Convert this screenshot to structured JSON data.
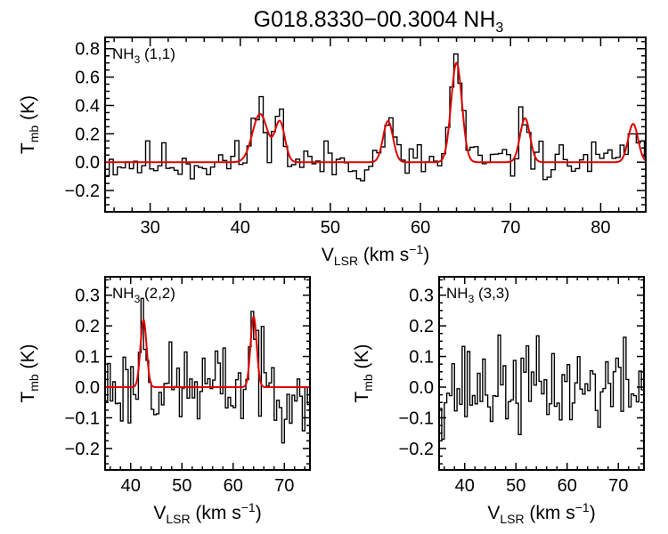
{
  "chart_data": [
    {
      "type": "line",
      "title": "G018.8330−00.3004 NH",
      "title_sub": "3",
      "panel_label": "NH",
      "panel_label_sub": "3",
      "panel_label_suffix": " (1,1)",
      "xlabel": "V",
      "xlabel_sub": "LSR",
      "xlabel_suffix": " (km s",
      "xlabel_sup": "−1",
      "xlabel_close": ")",
      "ylabel": "T",
      "ylabel_sub": "mb",
      "ylabel_suffix": " (K)",
      "xlim": [
        25,
        85
      ],
      "ylim": [
        -0.35,
        0.88
      ],
      "xticks": [
        30,
        40,
        50,
        60,
        70,
        80
      ],
      "yticks": [
        -0.2,
        0.0,
        0.2,
        0.4,
        0.6,
        0.8
      ],
      "ytick_labels": [
        "−0.2",
        "0.0",
        "0.2",
        "0.4",
        "0.6",
        "0.8"
      ],
      "xtick_labels": [
        "30",
        "40",
        "50",
        "60",
        "70",
        "80"
      ],
      "obs_seed": 11,
      "obs_noise": 0.075,
      "obs_step": 0.45,
      "series": [
        {
          "name": "observed spectrum",
          "style": "histogram",
          "color": "#000000"
        },
        {
          "name": "hyperfine fit",
          "style": "line",
          "color": "#e00000",
          "components": [
            {
              "center": 42.2,
              "amplitude": 0.34,
              "sigma": 0.85
            },
            {
              "center": 44.4,
              "amplitude": 0.28,
              "sigma": 0.55
            },
            {
              "center": 56.4,
              "amplitude": 0.29,
              "sigma": 0.55
            },
            {
              "center": 64.0,
              "amplitude": 0.7,
              "sigma": 0.6
            },
            {
              "center": 71.6,
              "amplitude": 0.31,
              "sigma": 0.55
            },
            {
              "center": 83.6,
              "amplitude": 0.27,
              "sigma": 0.55
            }
          ]
        }
      ]
    },
    {
      "type": "line",
      "panel_label": "NH",
      "panel_label_sub": "3",
      "panel_label_suffix": " (2,2)",
      "xlabel": "V",
      "xlabel_sub": "LSR",
      "xlabel_suffix": " (km s",
      "xlabel_sup": "−1",
      "xlabel_close": ")",
      "ylabel": "T",
      "ylabel_sub": "mb",
      "ylabel_suffix": " (K)",
      "xlim": [
        35,
        75
      ],
      "ylim": [
        -0.27,
        0.36
      ],
      "xticks": [
        40,
        50,
        60,
        70
      ],
      "yticks": [
        -0.2,
        -0.1,
        0.0,
        0.1,
        0.2,
        0.3
      ],
      "ytick_labels": [
        "−0.2",
        "−0.1",
        "0.0",
        "0.1",
        "0.2",
        "0.3"
      ],
      "xtick_labels": [
        "40",
        "50",
        "60",
        "70"
      ],
      "obs_seed": 23,
      "obs_noise": 0.07,
      "obs_step": 0.5,
      "series": [
        {
          "name": "observed spectrum",
          "style": "histogram",
          "color": "#000000"
        },
        {
          "name": "hyperfine fit",
          "style": "line",
          "color": "#e00000",
          "components": [
            {
              "center": 42.5,
              "amplitude": 0.22,
              "sigma": 0.6
            },
            {
              "center": 64.0,
              "amplitude": 0.23,
              "sigma": 0.6
            }
          ]
        }
      ]
    },
    {
      "type": "line",
      "panel_label": "NH",
      "panel_label_sub": "3",
      "panel_label_suffix": " (3,3)",
      "xlabel": "V",
      "xlabel_sub": "LSR",
      "xlabel_suffix": " (km s",
      "xlabel_sup": "−1",
      "xlabel_close": ")",
      "ylabel": "T",
      "ylabel_sub": "mb",
      "ylabel_suffix": " (K)",
      "xlim": [
        35,
        75
      ],
      "ylim": [
        -0.27,
        0.36
      ],
      "xticks": [
        40,
        50,
        60,
        70
      ],
      "yticks": [
        -0.2,
        -0.1,
        0.0,
        0.1,
        0.2,
        0.3
      ],
      "ytick_labels": [
        "−0.2",
        "−0.1",
        "0.0",
        "0.1",
        "0.2",
        "0.3"
      ],
      "xtick_labels": [
        "40",
        "50",
        "60",
        "70"
      ],
      "obs_seed": 37,
      "obs_noise": 0.075,
      "obs_step": 0.5,
      "series": [
        {
          "name": "observed spectrum",
          "style": "histogram",
          "color": "#000000"
        }
      ]
    }
  ]
}
